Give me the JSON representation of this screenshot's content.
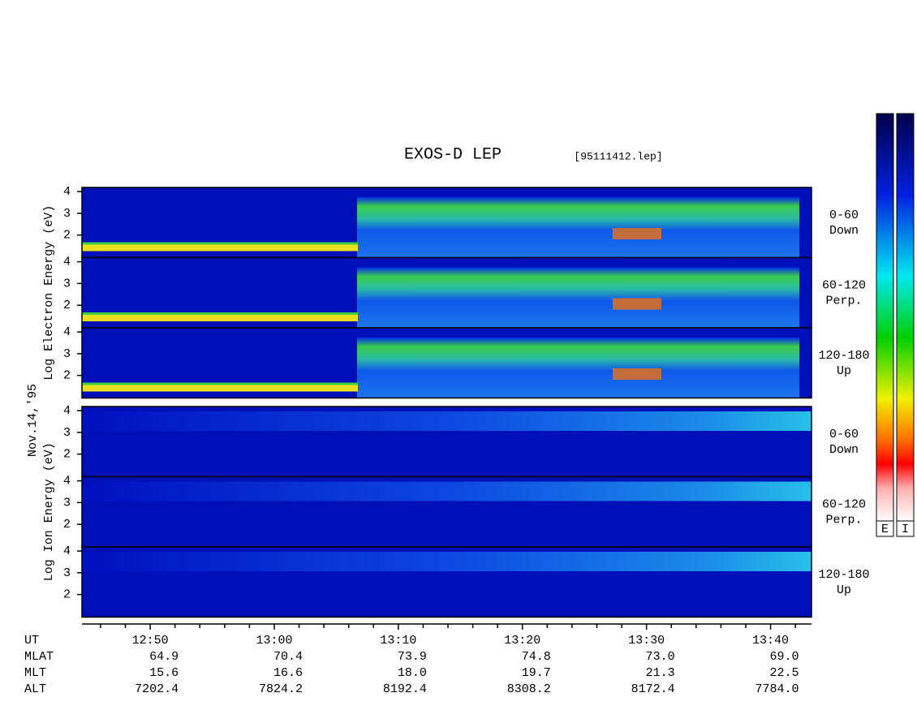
{
  "chart_data": {
    "type": "spectrogram",
    "title": "EXOS-D LEP",
    "subtitle": "[95111412.lep]",
    "date_label": "Nov.14,'95",
    "groups": [
      {
        "ylabel": "Log Electron Energy (eV)",
        "panels": [
          {
            "label": [
              "0-60",
              "Down"
            ]
          },
          {
            "label": [
              "60-120",
              "Perp."
            ]
          },
          {
            "label": [
              "120-180",
              "Up"
            ]
          }
        ]
      },
      {
        "ylabel": "Log Ion Energy (eV)",
        "panels": [
          {
            "label": [
              "0-60",
              "Down"
            ]
          },
          {
            "label": [
              "60-120",
              "Perp."
            ]
          },
          {
            "label": [
              "120-180",
              "Up"
            ]
          }
        ]
      }
    ],
    "ylim": [
      0.96,
      4.19
    ],
    "yticks": [
      2,
      3,
      4
    ],
    "xlim": [
      764.5,
      823.3
    ],
    "xlabel": "UT",
    "xticks": [
      {
        "value": 770,
        "label": "12:50"
      },
      {
        "value": 780,
        "label": "13:00"
      },
      {
        "value": 790,
        "label": "13:10"
      },
      {
        "value": 800,
        "label": "13:20"
      },
      {
        "value": 810,
        "label": "13:30"
      },
      {
        "value": 820,
        "label": "13:40"
      }
    ],
    "xminorticks": [
      766,
      768,
      772,
      774,
      776,
      778,
      782,
      784,
      786,
      788,
      792,
      794,
      796,
      798,
      802,
      804,
      806,
      808,
      812,
      814,
      816,
      818,
      822
    ],
    "ephemeris": [
      {
        "name": "MLAT",
        "values": [
          "64.9",
          "70.4",
          "73.9",
          "74.8",
          "73.0",
          "69.0"
        ]
      },
      {
        "name": "MLT",
        "values": [
          "15.6",
          "16.6",
          "18.0",
          "19.7",
          "21.3",
          "22.5"
        ]
      },
      {
        "name": "ALT",
        "values": [
          "7202.4",
          "7824.2",
          "8192.4",
          "8308.2",
          "8172.4",
          "7784.0"
        ]
      }
    ],
    "colorbar_labels": [
      "E",
      "I"
    ]
  }
}
